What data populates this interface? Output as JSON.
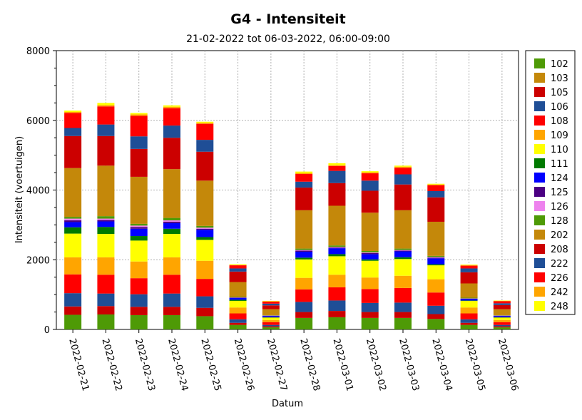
{
  "chart_data": {
    "type": "bar",
    "stacked": true,
    "title": "G4 - Intensiteit",
    "subtitle": "21-02-2022 tot 06-03-2022, 06:00-09:00",
    "xlabel": "Datum",
    "ylabel": "Intensiteit (voertuigen)",
    "ylim": [
      0,
      8000
    ],
    "yticks": [
      0,
      2000,
      4000,
      6000,
      8000
    ],
    "grid": true,
    "legend_position": "right",
    "categories": [
      "2022-02-21",
      "2022-02-22",
      "2022-02-23",
      "2022-02-24",
      "2022-02-25",
      "2022-02-26",
      "2022-02-27",
      "2022-02-28",
      "2022-03-01",
      "2022-03-02",
      "2022-03-03",
      "2022-03-04",
      "2022-03-05",
      "2022-03-06"
    ],
    "series": [
      {
        "name": "102",
        "color": "#4e9a06",
        "values": [
          420,
          430,
          410,
          410,
          380,
          130,
          60,
          330,
          350,
          330,
          330,
          300,
          130,
          60
        ]
      },
      {
        "name": "103",
        "color": "#c4880a",
        "values": [
          0,
          0,
          0,
          0,
          0,
          0,
          0,
          0,
          0,
          0,
          0,
          0,
          0,
          0
        ]
      },
      {
        "name": "105",
        "color": "#cc0000",
        "values": [
          240,
          240,
          240,
          240,
          240,
          60,
          30,
          170,
          180,
          170,
          170,
          140,
          60,
          30
        ]
      },
      {
        "name": "106",
        "color": "#1f4e96",
        "values": [
          380,
          360,
          360,
          380,
          330,
          100,
          40,
          290,
          300,
          260,
          270,
          240,
          100,
          40
        ]
      },
      {
        "name": "108",
        "color": "#ff0000",
        "values": [
          540,
          540,
          460,
          540,
          500,
          170,
          80,
          360,
          380,
          400,
          420,
          380,
          170,
          80
        ]
      },
      {
        "name": "109",
        "color": "#ffa500",
        "values": [
          490,
          500,
          480,
          500,
          520,
          170,
          60,
          330,
          360,
          330,
          350,
          380,
          170,
          60
        ]
      },
      {
        "name": "110",
        "color": "#ffff00",
        "values": [
          680,
          670,
          600,
          670,
          600,
          190,
          70,
          530,
          530,
          480,
          480,
          400,
          190,
          70
        ]
      },
      {
        "name": "111",
        "color": "#007a00",
        "values": [
          180,
          200,
          130,
          150,
          80,
          30,
          10,
          50,
          60,
          40,
          50,
          30,
          10,
          10
        ]
      },
      {
        "name": "124",
        "color": "#0000ff",
        "values": [
          150,
          160,
          210,
          160,
          210,
          50,
          30,
          170,
          170,
          150,
          170,
          170,
          40,
          30
        ]
      },
      {
        "name": "125",
        "color": "#4b0082",
        "values": [
          50,
          40,
          50,
          40,
          30,
          10,
          10,
          30,
          20,
          30,
          20,
          20,
          10,
          10
        ]
      },
      {
        "name": "126",
        "color": "#ee82ee",
        "values": [
          50,
          40,
          40,
          40,
          30,
          10,
          10,
          20,
          20,
          20,
          20,
          20,
          10,
          10
        ]
      },
      {
        "name": "128",
        "color": "#4e9a06",
        "values": [
          50,
          70,
          50,
          70,
          50,
          20,
          10,
          40,
          40,
          40,
          40,
          30,
          20,
          10
        ]
      },
      {
        "name": "202",
        "color": "#c4880a",
        "values": [
          1400,
          1450,
          1350,
          1400,
          1300,
          420,
          170,
          1100,
          1140,
          1100,
          1100,
          980,
          410,
          170
        ]
      },
      {
        "name": "208",
        "color": "#cc0000",
        "values": [
          920,
          850,
          800,
          900,
          830,
          300,
          110,
          650,
          650,
          630,
          740,
          700,
          320,
          120
        ]
      },
      {
        "name": "222",
        "color": "#1f4e96",
        "values": [
          230,
          330,
          360,
          350,
          340,
          90,
          50,
          170,
          350,
          290,
          290,
          180,
          110,
          50
        ]
      },
      {
        "name": "226",
        "color": "#ff0000",
        "values": [
          430,
          520,
          590,
          500,
          460,
          90,
          60,
          220,
          140,
          210,
          190,
          170,
          80,
          60
        ]
      },
      {
        "name": "242",
        "color": "#ffa500",
        "values": [
          30,
          40,
          40,
          40,
          30,
          10,
          10,
          30,
          30,
          30,
          30,
          20,
          10,
          10
        ]
      },
      {
        "name": "248",
        "color": "#ffff00",
        "values": [
          40,
          60,
          40,
          40,
          30,
          20,
          10,
          40,
          50,
          30,
          30,
          20,
          20,
          10
        ]
      }
    ]
  }
}
